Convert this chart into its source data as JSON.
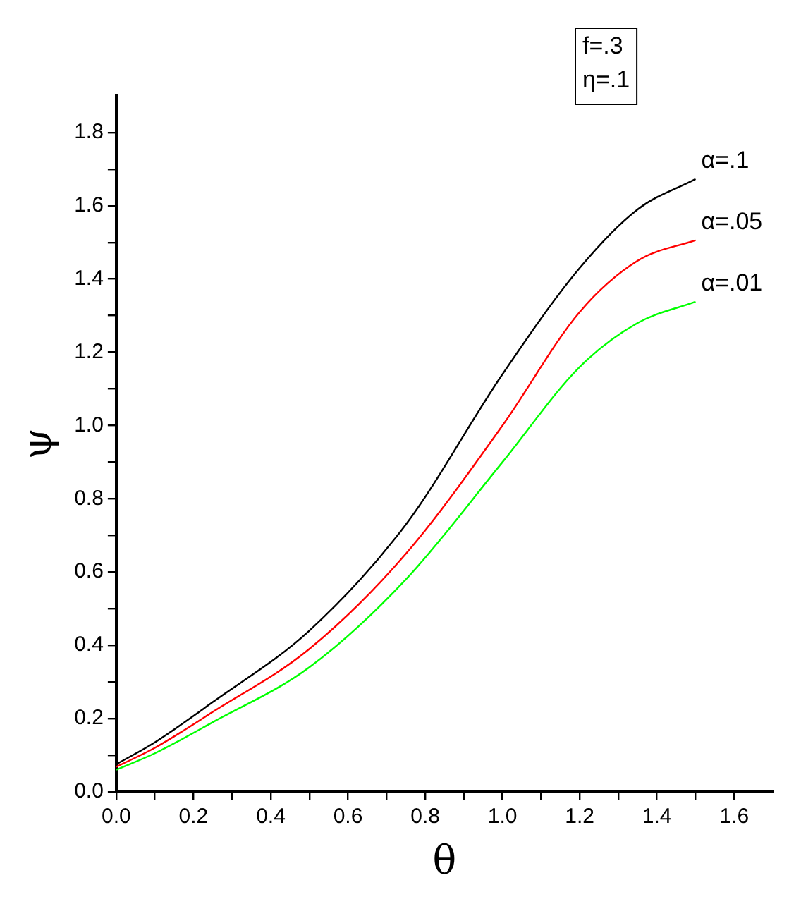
{
  "chart_data": {
    "type": "line",
    "xlabel": "θ",
    "ylabel": "ψ",
    "annotations": [
      "f=.3",
      "η=.1"
    ],
    "x": [
      0,
      0.1,
      0.25,
      0.5,
      0.75,
      1.0,
      1.2,
      1.35,
      1.5
    ],
    "series": [
      {
        "name": "α=.1",
        "color": "#000000",
        "values": [
          0.075,
          0.135,
          0.245,
          0.44,
          0.73,
          1.14,
          1.43,
          1.59,
          1.673
        ]
      },
      {
        "name": "α=.05",
        "color": "#ff0000",
        "values": [
          0.068,
          0.12,
          0.218,
          0.39,
          0.65,
          1.0,
          1.31,
          1.45,
          1.506
        ]
      },
      {
        "name": "α=.01",
        "color": "#00ff00",
        "values": [
          0.06,
          0.105,
          0.19,
          0.34,
          0.58,
          0.9,
          1.16,
          1.28,
          1.338
        ]
      }
    ],
    "xlim": [
      0,
      1.7
    ],
    "xticks": [
      {
        "value": 0,
        "label": "0.0"
      },
      {
        "value": 0.1,
        "label": null
      },
      0.2,
      {
        "value": 0.3,
        "label": null
      },
      0.4,
      {
        "value": 0.5,
        "label": null
      },
      0.6,
      {
        "value": 0.7,
        "label": null
      },
      0.8,
      {
        "value": 0.9,
        "label": null
      },
      {
        "value": 1,
        "label": "1.0"
      },
      {
        "value": 1.1,
        "label": null
      },
      1.2,
      {
        "value": 1.3,
        "label": null
      },
      1.4,
      {
        "value": 1.5,
        "label": null
      },
      1.6
    ],
    "ylim": [
      0,
      1.9
    ],
    "yticks": [
      {
        "value": 0,
        "label": "0.0"
      },
      {
        "value": 0.1,
        "label": null
      },
      0.2,
      {
        "value": 0.3,
        "label": null
      },
      0.4,
      {
        "value": 0.5,
        "label": null
      },
      0.6,
      {
        "value": 0.7,
        "label": null
      },
      0.8,
      {
        "value": 0.9,
        "label": null
      },
      {
        "value": 1,
        "label": "1.0"
      },
      {
        "value": 1.1,
        "label": null
      },
      1.2,
      {
        "value": 1.3,
        "label": null
      },
      1.4,
      {
        "value": 1.5,
        "label": null
      },
      1.6,
      {
        "value": 1.7,
        "label": null
      },
      1.8
    ],
    "grid": false,
    "legend": false,
    "marker": "none",
    "line_style": "solid"
  }
}
